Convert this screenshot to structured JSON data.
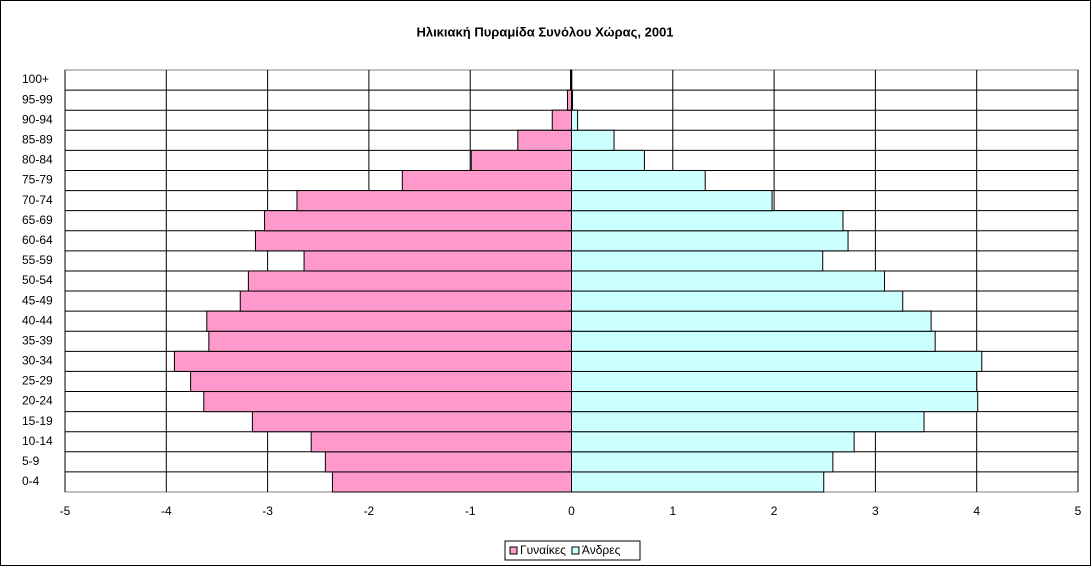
{
  "chart_data": {
    "type": "bar",
    "orientation": "horizontal",
    "title": "Ηλικιακή Πυραμίδα Συνόλου Χώρας, 2001",
    "categories": [
      "0-4",
      "5-9",
      "10-14",
      "15-19",
      "20-24",
      "25-29",
      "30-34",
      "35-39",
      "40-44",
      "45-49",
      "50-54",
      "55-59",
      "60-64",
      "65-69",
      "70-74",
      "75-79",
      "80-84",
      "85-89",
      "90-94",
      "95-99",
      "100+"
    ],
    "series": [
      {
        "name": "Γυναίκες",
        "color": "#ff99cc",
        "values": [
          -2.36,
          -2.43,
          -2.57,
          -3.15,
          -3.63,
          -3.76,
          -3.92,
          -3.58,
          -3.6,
          -3.27,
          -3.19,
          -2.64,
          -3.12,
          -3.03,
          -2.71,
          -1.67,
          -0.99,
          -0.53,
          -0.19,
          -0.04,
          -0.01
        ]
      },
      {
        "name": "Άνδρες",
        "color": "#ccffff",
        "values": [
          2.49,
          2.58,
          2.79,
          3.48,
          4.01,
          4.0,
          4.05,
          3.59,
          3.55,
          3.27,
          3.09,
          2.48,
          2.73,
          2.68,
          1.98,
          1.32,
          0.72,
          0.42,
          0.06,
          0.01,
          0.003
        ]
      }
    ],
    "xlim": [
      -5,
      5
    ],
    "xticks": [
      -5,
      -4,
      -3,
      -2,
      -1,
      0,
      1,
      2,
      3,
      4,
      5
    ],
    "grid": true,
    "legend": "bottom"
  }
}
